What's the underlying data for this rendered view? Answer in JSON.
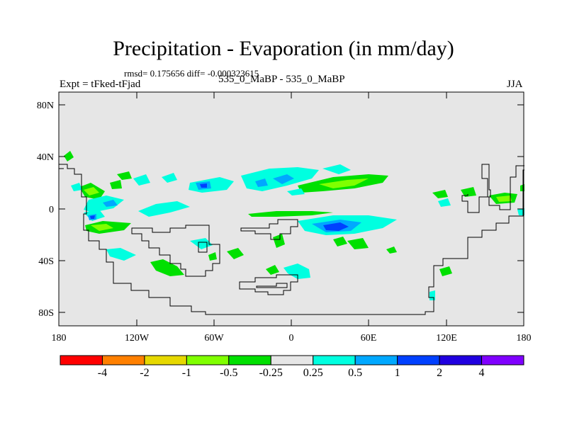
{
  "title": "Precipitation - Evaporation (in mm/day)",
  "stats": "rmsd= 0.175656 diff= -0.000323615",
  "experiment": "Expt = tFked-tFjad",
  "case": "535_0_MaBP - 535_0_MaBP",
  "season": "JJA",
  "lat_ticks": [
    "80N",
    "40N",
    "0",
    "40S",
    "80S"
  ],
  "lon_ticks": [
    "180",
    "120W",
    "60W",
    "0",
    "60E",
    "120E",
    "180"
  ],
  "colorbar": {
    "colors": [
      "#ff0000",
      "#ff8000",
      "#e6d800",
      "#80ff00",
      "#00e000",
      "#e6e6e6",
      "#00ffe0",
      "#00a8ff",
      "#0040ff",
      "#2000e0",
      "#8000ff"
    ],
    "labels": [
      "-4",
      "-2",
      "-1",
      "-0.5",
      "-0.25",
      "0.25",
      "0.5",
      "1",
      "2",
      "4"
    ]
  },
  "palette": {
    "background": "#e6e6e6",
    "coast": "#000000",
    "negative": "#00e000",
    "negative_strong": "#80ff00",
    "positive": "#00ffe0",
    "positive_strong": "#00a8ff",
    "positive_stronger": "#0040ff"
  }
}
